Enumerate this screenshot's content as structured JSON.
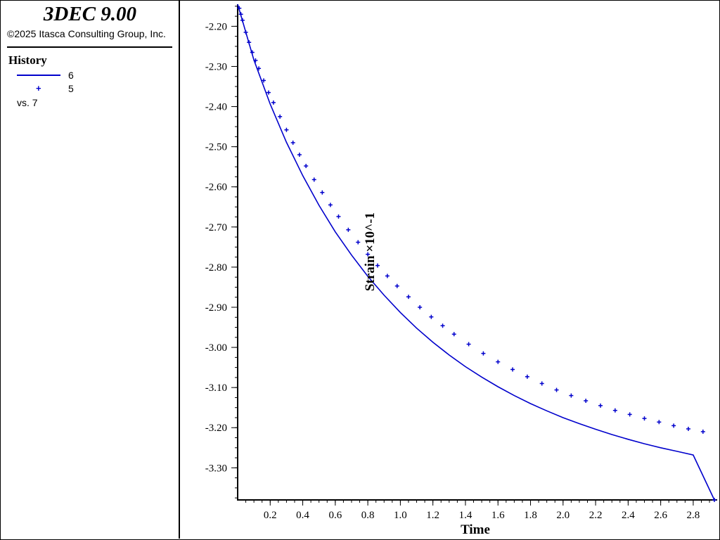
{
  "app": {
    "title": "3DEC 9.00",
    "copyright": "©2025 Itasca Consulting Group, Inc."
  },
  "legend": {
    "title": "History",
    "items": [
      {
        "label": "6",
        "style": "line",
        "color": "#0000cc"
      },
      {
        "label": "5",
        "style": "cross",
        "color": "#0000cc"
      }
    ],
    "vs_label": "vs. 7"
  },
  "chart_data": {
    "type": "line",
    "xlabel": "Time",
    "ylabel": "Strain ×10^-1",
    "xlim": [
      0,
      2.93
    ],
    "ylim": [
      -3.38,
      -2.145
    ],
    "x_ticks": [
      "0.2",
      "0.4",
      "0.6",
      "0.8",
      "1.0",
      "1.2",
      "1.4",
      "1.6",
      "1.8",
      "2.0",
      "2.2",
      "2.4",
      "2.6",
      "2.8"
    ],
    "y_ticks": [
      "-2.20",
      "-2.30",
      "-2.40",
      "-2.50",
      "-2.60",
      "-2.70",
      "-2.80",
      "-2.90",
      "-3.00",
      "-3.10",
      "-3.20",
      "-3.30"
    ],
    "grid": false,
    "series": [
      {
        "name": "6",
        "style": "line",
        "color": "#0000cc",
        "x": [
          0.0,
          0.1,
          0.2,
          0.3,
          0.4,
          0.5,
          0.6,
          0.7,
          0.8,
          0.9,
          1.0,
          1.1,
          1.2,
          1.3,
          1.4,
          1.5,
          1.6,
          1.7,
          1.8,
          1.9,
          2.0,
          2.1,
          2.2,
          2.3,
          2.4,
          2.5,
          2.6,
          2.7,
          2.8,
          2.93
        ],
        "y": [
          -2.145,
          -2.284,
          -2.394,
          -2.489,
          -2.572,
          -2.646,
          -2.712,
          -2.77,
          -2.823,
          -2.87,
          -2.913,
          -2.952,
          -2.987,
          -3.019,
          -3.048,
          -3.074,
          -3.098,
          -3.12,
          -3.14,
          -3.158,
          -3.175,
          -3.19,
          -3.204,
          -3.217,
          -3.229,
          -3.24,
          -3.25,
          -3.259,
          -3.268,
          -3.38
        ]
      },
      {
        "name": "5",
        "style": "cross",
        "color": "#0000cc",
        "x": [
          0.01,
          0.02,
          0.03,
          0.05,
          0.07,
          0.09,
          0.11,
          0.13,
          0.16,
          0.19,
          0.22,
          0.26,
          0.3,
          0.34,
          0.38,
          0.42,
          0.47,
          0.52,
          0.57,
          0.62,
          0.68,
          0.74,
          0.8,
          0.86,
          0.92,
          0.98,
          1.05,
          1.12,
          1.19,
          1.26,
          1.33,
          1.42,
          1.51,
          1.6,
          1.69,
          1.78,
          1.87,
          1.96,
          2.05,
          2.14,
          2.23,
          2.32,
          2.41,
          2.5,
          2.59,
          2.68,
          2.77,
          2.86,
          2.93
        ],
        "y": [
          -2.155,
          -2.17,
          -2.185,
          -2.215,
          -2.24,
          -2.265,
          -2.285,
          -2.305,
          -2.335,
          -2.365,
          -2.39,
          -2.425,
          -2.458,
          -2.49,
          -2.52,
          -2.548,
          -2.582,
          -2.614,
          -2.645,
          -2.674,
          -2.707,
          -2.738,
          -2.768,
          -2.796,
          -2.822,
          -2.847,
          -2.874,
          -2.9,
          -2.924,
          -2.946,
          -2.967,
          -2.992,
          -3.015,
          -3.036,
          -3.055,
          -3.073,
          -3.09,
          -3.106,
          -3.12,
          -3.133,
          -3.145,
          -3.157,
          -3.167,
          -3.177,
          -3.186,
          -3.195,
          -3.203,
          -3.21,
          -3.38
        ]
      }
    ]
  }
}
